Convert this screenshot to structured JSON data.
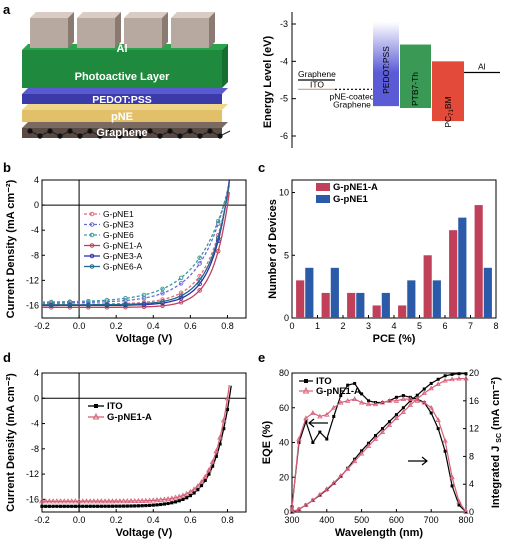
{
  "panels": {
    "a": "a",
    "b": "b",
    "c": "c",
    "d": "d",
    "e": "e"
  },
  "device": {
    "layers": [
      "Al",
      "Photoactive Layer",
      "PEDOT:PSS",
      "pNE",
      "Graphene"
    ],
    "colors": {
      "al": "#b7a8a0",
      "active": "#1f8a3e",
      "pedot": "#3a3aa8",
      "pne": "#e2c06a",
      "graphene": "#5a4a44"
    }
  },
  "energy": {
    "ylabel": "Energy Level (eV)",
    "ticks": [
      "-3",
      "-4",
      "-5",
      "-6"
    ],
    "labels": {
      "graphene": "Graphene",
      "ito": "ITO",
      "pne_coated": "pNE-coated",
      "pne_coated2": "Graphene",
      "pedot": "PEDOT:PSS",
      "ptb7": "PTB7-Th",
      "pcbm": "PC",
      "pcbm_sub": "71",
      "pcbm_end": "BM",
      "al": "Al"
    },
    "colors": {
      "pedot": "#5b5bd6",
      "ptb7": "#3a9a55",
      "pcbm": "#e44a3a"
    }
  },
  "chart_data": [
    {
      "panel": "b",
      "type": "line",
      "xlabel": "Voltage (V)",
      "ylabel": "Current Density (mA cm⁻²)",
      "xlim": [
        -0.2,
        0.9
      ],
      "ylim": [
        -18,
        4
      ],
      "xticks": [
        "-0.2",
        "0.0",
        "0.2",
        "0.4",
        "0.6",
        "0.8"
      ],
      "yticks": [
        "4",
        "0",
        "-4",
        "-8",
        "-12",
        "-16"
      ],
      "series": [
        {
          "name": "G-pNE1",
          "color": "#e06a7a",
          "dash": true,
          "jsc": -15.8,
          "voc": 0.79,
          "k": 9.0
        },
        {
          "name": "G-pNE3",
          "color": "#6a6ad6",
          "dash": true,
          "jsc": -15.6,
          "voc": 0.78,
          "k": 7.0
        },
        {
          "name": "G-pNE6",
          "color": "#3a9a9a",
          "dash": true,
          "jsc": -15.5,
          "voc": 0.78,
          "k": 6.0
        },
        {
          "name": "G-pNE1-A",
          "color": "#c0405a",
          "dash": false,
          "jsc": -16.3,
          "voc": 0.8,
          "k": 12.0
        },
        {
          "name": "G-pNE3-A",
          "color": "#3030b0",
          "dash": false,
          "jsc": -16.0,
          "voc": 0.79,
          "k": 11.0
        },
        {
          "name": "G-pNE6-A",
          "color": "#206a8a",
          "dash": false,
          "jsc": -15.9,
          "voc": 0.79,
          "k": 10.0
        }
      ]
    },
    {
      "panel": "c",
      "type": "bar",
      "xlabel": "PCE (%)",
      "ylabel": "Number of Devices",
      "xlim": [
        0,
        8
      ],
      "ylim": [
        0,
        11
      ],
      "xticks": [
        "0",
        "1",
        "2",
        "3",
        "4",
        "5",
        "6",
        "7",
        "8"
      ],
      "yticks": [
        "0",
        "5",
        "10"
      ],
      "categories": [
        0.5,
        1.5,
        2.5,
        3.5,
        4.5,
        5.5,
        6.5,
        7.5
      ],
      "series": [
        {
          "name": "G-pNE1-A",
          "color": "#c0405a",
          "values": [
            3,
            2,
            2,
            1,
            1,
            5,
            7,
            9
          ]
        },
        {
          "name": "G-pNE1",
          "color": "#2a5aa8",
          "values": [
            4,
            4,
            2,
            2,
            3,
            3,
            8,
            4
          ]
        }
      ]
    },
    {
      "panel": "d",
      "type": "line",
      "xlabel": "Voltage (V)",
      "ylabel": "Current Density (mA cm⁻²)",
      "xlim": [
        -0.2,
        0.9
      ],
      "ylim": [
        -18,
        4
      ],
      "xticks": [
        "-0.2",
        "0.0",
        "0.2",
        "0.4",
        "0.6",
        "0.8"
      ],
      "yticks": [
        "4",
        "0",
        "-4",
        "-8",
        "-12",
        "-16"
      ],
      "series": [
        {
          "name": "ITO",
          "color": "#000000",
          "marker": "square",
          "jsc": -17.1,
          "voc": 0.81,
          "k": 11.0
        },
        {
          "name": "G-pNE1-A",
          "color": "#d8607a",
          "marker": "triangle",
          "jsc": -16.3,
          "voc": 0.8,
          "k": 12.0
        }
      ]
    },
    {
      "panel": "e",
      "type": "line",
      "xlabel": "Wavelength (nm)",
      "ylabel": "EQE (%)",
      "y2label": "Integrated J",
      "y2label_sub": "SC",
      "y2label_end": " (mA cm⁻²)",
      "xlim": [
        300,
        800
      ],
      "ylim": [
        0,
        80
      ],
      "y2lim": [
        0,
        20
      ],
      "xticks": [
        "300",
        "400",
        "500",
        "600",
        "700",
        "800"
      ],
      "yticks": [
        "0",
        "20",
        "40",
        "60",
        "80"
      ],
      "y2ticks": [
        "0",
        "4",
        "8",
        "12",
        "16",
        "20"
      ],
      "x": [
        300,
        320,
        340,
        360,
        380,
        400,
        420,
        440,
        460,
        480,
        500,
        520,
        540,
        560,
        580,
        600,
        620,
        640,
        660,
        680,
        700,
        720,
        740,
        760,
        780,
        800
      ],
      "series": [
        {
          "name": "ITO",
          "color": "#000000",
          "marker": "square",
          "eqe": [
            3,
            40,
            52,
            40,
            46,
            42,
            55,
            67,
            73,
            74,
            68,
            64,
            63,
            63,
            64,
            66,
            67,
            66,
            65,
            63,
            57,
            48,
            35,
            15,
            4,
            0
          ],
          "jsc": [
            0,
            0.4,
            1.0,
            1.7,
            2.4,
            3.2,
            4.1,
            5.1,
            6.3,
            7.6,
            8.8,
            9.9,
            11.0,
            12.0,
            13.0,
            14.0,
            15.0,
            16.0,
            16.8,
            17.7,
            18.5,
            19.1,
            19.6,
            19.8,
            19.9,
            19.9
          ]
        },
        {
          "name": "G-pNE1-A",
          "color": "#d8607a",
          "marker": "triangle",
          "eqe": [
            2,
            42,
            54,
            57,
            55,
            56,
            60,
            63,
            64,
            65,
            63,
            62,
            62,
            63,
            64,
            64,
            65,
            65,
            64,
            63,
            60,
            53,
            41,
            20,
            6,
            0
          ],
          "jsc": [
            0,
            0.4,
            1.0,
            1.7,
            2.5,
            3.3,
            4.2,
            5.2,
            6.2,
            7.3,
            8.4,
            9.5,
            10.5,
            11.5,
            12.5,
            13.5,
            14.4,
            15.4,
            16.3,
            17.1,
            17.8,
            18.4,
            18.9,
            19.1,
            19.2,
            19.2
          ]
        }
      ],
      "arrows": [
        "left",
        "right"
      ]
    }
  ]
}
